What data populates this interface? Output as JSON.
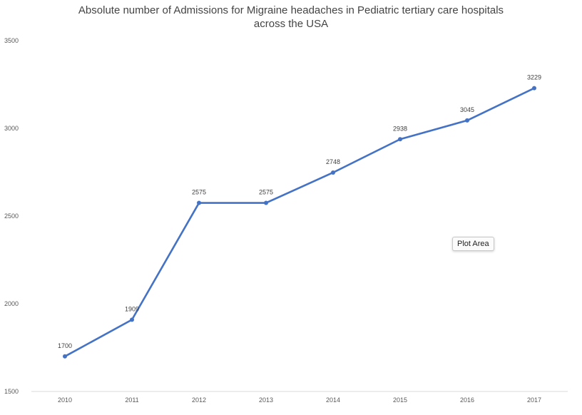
{
  "chart_data": {
    "type": "line",
    "title_line1": "Absolute number of  Admissions for Migraine headaches in Pediatric tertiary care hospitals",
    "title_line2": "across the USA",
    "xlabel": "",
    "ylabel": "",
    "categories": [
      "2010",
      "2011",
      "2012",
      "2013",
      "2014",
      "2015",
      "2016",
      "2017"
    ],
    "series": [
      {
        "values": [
          1700,
          1909,
          2575,
          2575,
          2748,
          2938,
          3045,
          3229
        ]
      }
    ],
    "ylim": [
      1500,
      3500
    ],
    "yticks": [
      1500,
      2000,
      2500,
      3000,
      3500
    ],
    "grid": false,
    "data_labels": true,
    "line_color": "#4472C4"
  },
  "tooltip": {
    "label": "Plot Area"
  }
}
